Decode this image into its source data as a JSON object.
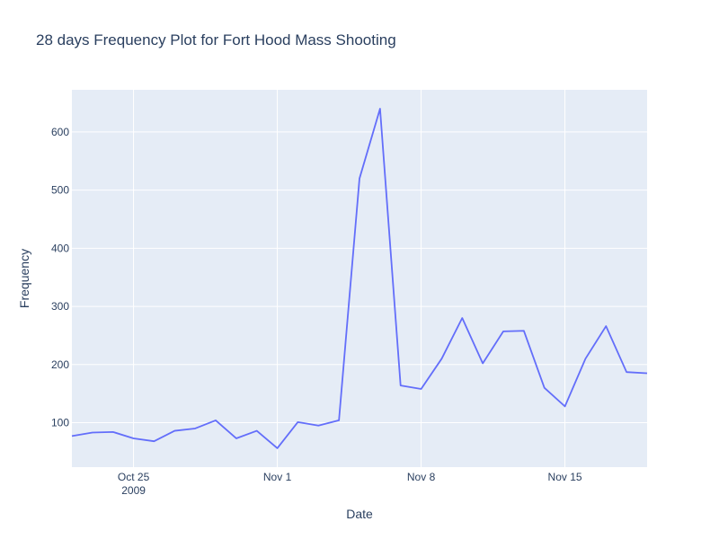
{
  "chart_data": {
    "type": "line",
    "title": "28 days Frequency Plot for Fort Hood Mass Shooting",
    "xlabel": "Date",
    "ylabel": "Frequency",
    "x_ticks": [
      {
        "date": "2009-10-25",
        "label": "Oct 25",
        "sublabel": "2009"
      },
      {
        "date": "2009-11-01",
        "label": "Nov 1",
        "sublabel": ""
      },
      {
        "date": "2009-11-08",
        "label": "Nov 8",
        "sublabel": ""
      },
      {
        "date": "2009-11-15",
        "label": "Nov 15",
        "sublabel": ""
      }
    ],
    "xlim": [
      "2009-10-22",
      "2009-11-19"
    ],
    "y_ticks": [
      100,
      200,
      300,
      400,
      500,
      600
    ],
    "ylim": [
      23.5,
      672.5
    ],
    "grid": true,
    "colors": {
      "line": "#636efa",
      "plot_background": "#e5ecf6",
      "grid": "#ffffff",
      "text": "#2a3f5f"
    },
    "series": [
      {
        "x": [
          "2009-10-22",
          "2009-10-23",
          "2009-10-24",
          "2009-10-25",
          "2009-10-26",
          "2009-10-27",
          "2009-10-28",
          "2009-10-29",
          "2009-10-30",
          "2009-10-31",
          "2009-11-01",
          "2009-11-02",
          "2009-11-03",
          "2009-11-04",
          "2009-11-05",
          "2009-11-06",
          "2009-11-07",
          "2009-11-08",
          "2009-11-09",
          "2009-11-10",
          "2009-11-11",
          "2009-11-12",
          "2009-11-13",
          "2009-11-14",
          "2009-11-15",
          "2009-11-16",
          "2009-11-17",
          "2009-11-18",
          "2009-11-19"
        ],
        "values": [
          77,
          83,
          84,
          73,
          68,
          86,
          90,
          104,
          73,
          86,
          56,
          101,
          95,
          104,
          520,
          640,
          164,
          158,
          210,
          280,
          202,
          257,
          258,
          160,
          128,
          210,
          266,
          187,
          185
        ]
      }
    ]
  }
}
